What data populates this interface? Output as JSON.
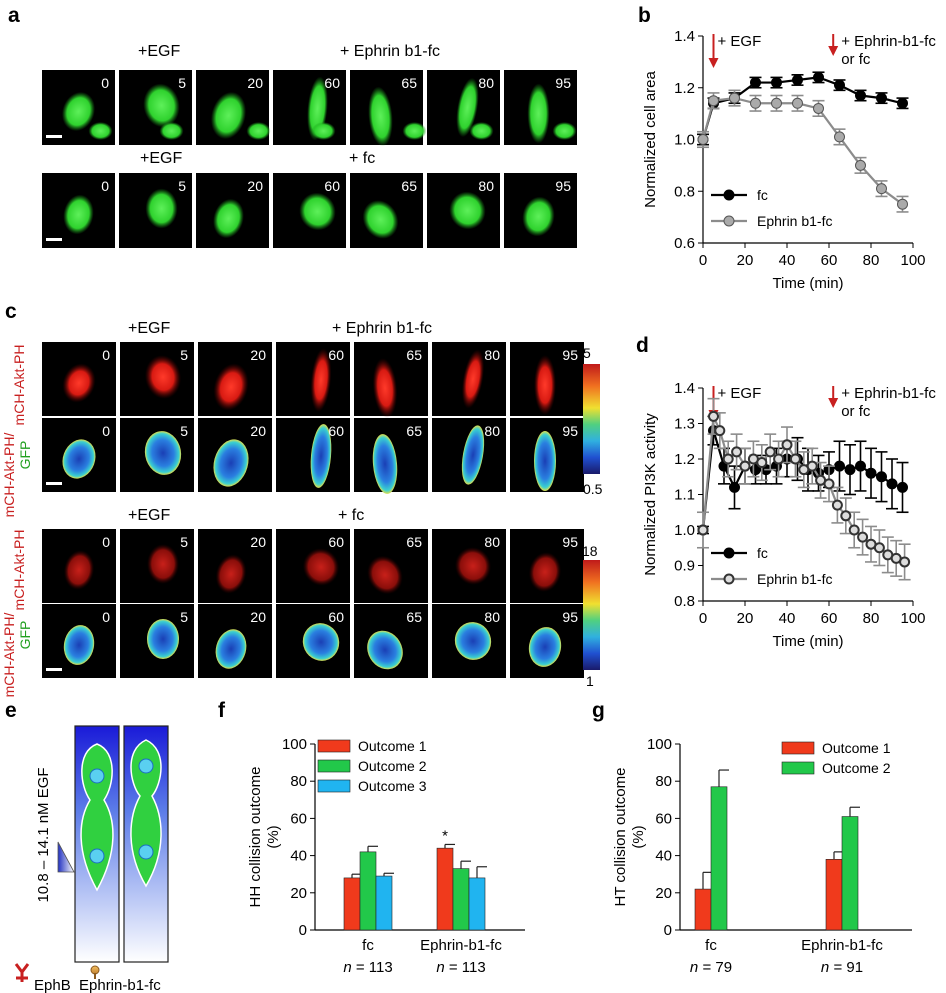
{
  "panels": {
    "a": "a",
    "b": "b",
    "c": "c",
    "d": "d",
    "e": "e",
    "f": "f",
    "g": "g"
  },
  "panel_a": {
    "row1_left": "+EGF",
    "row1_right": "+ Ephrin b1-fc",
    "row2_left": "+EGF",
    "row2_right": "+ fc",
    "times": [
      "0",
      "5",
      "20",
      "60",
      "65",
      "80",
      "95"
    ],
    "image_color": "#22c52b"
  },
  "panel_c": {
    "row1_left": "+EGF",
    "row1_right": "+ Ephrin b1-fc",
    "row2_left": "+EGF",
    "row2_right": "+ fc",
    "times": [
      "0",
      "5",
      "20",
      "60",
      "65",
      "80",
      "95"
    ],
    "side_red": "mCH-Akt-PH",
    "side_ratio_top": "mCH-Akt-PH/",
    "side_ratio_bottom": "GFP",
    "scale1_max": "5",
    "scale1_min": "0.5",
    "scale2_max": "18",
    "scale2_min": "1"
  },
  "panel_e": {
    "gradient_label": "10.8 – 14.1 nM EGF",
    "ephb": "EphB",
    "ephrin": "Ephrin-b1-fc"
  },
  "chart_data": [
    {
      "id": "b",
      "type": "line",
      "xlabel": "Time (min)",
      "ylabel": "Normalized cell area",
      "xlim": [
        0,
        100
      ],
      "ylim": [
        0.6,
        1.4
      ],
      "xticks": [
        "0",
        "20",
        "40",
        "60",
        "80",
        "100"
      ],
      "yticks": [
        "0.6",
        "0.8",
        "1.0",
        "1.2",
        "1.4"
      ],
      "annotations": [
        "+ EGF",
        "+ Ephrin-b1-fc",
        "or fc"
      ],
      "series": [
        {
          "name": "fc",
          "x": [
            0,
            5,
            15,
            25,
            35,
            45,
            55,
            65,
            75,
            85,
            95
          ],
          "values": [
            1.0,
            1.14,
            1.16,
            1.22,
            1.22,
            1.23,
            1.24,
            1.21,
            1.17,
            1.16,
            1.14
          ],
          "err": 0.02
        },
        {
          "name": "Ephrin b1-fc",
          "x": [
            0,
            5,
            15,
            25,
            35,
            45,
            55,
            65,
            75,
            85,
            95
          ],
          "values": [
            1.0,
            1.15,
            1.16,
            1.14,
            1.14,
            1.14,
            1.12,
            1.01,
            0.9,
            0.81,
            0.75
          ],
          "err": 0.03
        }
      ]
    },
    {
      "id": "d",
      "type": "line",
      "xlabel": "Time (min)",
      "ylabel": "Normalized PI3K activity",
      "xlim": [
        0,
        100
      ],
      "ylim": [
        0.8,
        1.4
      ],
      "xticks": [
        "0",
        "20",
        "40",
        "60",
        "80",
        "100"
      ],
      "yticks": [
        "0.8",
        "0.9",
        "1.0",
        "1.1",
        "1.2",
        "1.3",
        "1.4"
      ],
      "annotations": [
        "+ EGF",
        "+ Ephrin-b1-fc",
        "or fc"
      ],
      "series": [
        {
          "name": "fc",
          "x": [
            0,
            5,
            10,
            15,
            20,
            25,
            30,
            35,
            40,
            45,
            50,
            55,
            60,
            65,
            70,
            75,
            80,
            85,
            90,
            95
          ],
          "values": [
            1.0,
            1.28,
            1.18,
            1.12,
            1.18,
            1.17,
            1.17,
            1.18,
            1.2,
            1.2,
            1.17,
            1.16,
            1.17,
            1.18,
            1.17,
            1.18,
            1.16,
            1.15,
            1.13,
            1.12
          ],
          "err": [
            0.01,
            0.04,
            0.05,
            0.06,
            0.05,
            0.04,
            0.04,
            0.05,
            0.05,
            0.06,
            0.06,
            0.05,
            0.05,
            0.07,
            0.07,
            0.07,
            0.07,
            0.07,
            0.07,
            0.07
          ]
        },
        {
          "name": "Ephrin b1-fc",
          "x": [
            0,
            5,
            8,
            12,
            16,
            20,
            24,
            28,
            32,
            36,
            40,
            44,
            48,
            52,
            56,
            60,
            64,
            68,
            72,
            76,
            80,
            84,
            88,
            92,
            96
          ],
          "values": [
            1.0,
            1.32,
            1.28,
            1.2,
            1.22,
            1.18,
            1.2,
            1.19,
            1.22,
            1.2,
            1.24,
            1.2,
            1.17,
            1.18,
            1.14,
            1.13,
            1.07,
            1.04,
            1.0,
            0.98,
            0.96,
            0.95,
            0.93,
            0.92,
            0.91
          ],
          "err": 0.05
        }
      ]
    },
    {
      "id": "f",
      "type": "bar",
      "ylabel": "HH collision outcome",
      "ylabel2": "(%)",
      "ylim": [
        0,
        100
      ],
      "yticks": [
        "0",
        "20",
        "40",
        "60",
        "80",
        "100"
      ],
      "categories": [
        "fc",
        "Ephrin-b1-fc"
      ],
      "n_prefix": "n",
      "n_values": [
        "= 113",
        "= 113"
      ],
      "series": [
        {
          "name": "Outcome 1",
          "color": "#f03a1c",
          "values": [
            28,
            44
          ],
          "err": [
            2,
            2
          ]
        },
        {
          "name": "Outcome 2",
          "color": "#22c84a",
          "values": [
            42,
            33
          ],
          "err": [
            3,
            4
          ]
        },
        {
          "name": "Outcome 3",
          "color": "#20b4f0",
          "values": [
            29,
            28
          ],
          "err": [
            1.5,
            6
          ]
        }
      ],
      "marker": "*"
    },
    {
      "id": "g",
      "type": "bar",
      "ylabel": "HT collision outcome",
      "ylabel2": "(%)",
      "ylim": [
        0,
        100
      ],
      "yticks": [
        "0",
        "20",
        "40",
        "60",
        "80",
        "100"
      ],
      "categories": [
        "fc",
        "Ephrin-b1-fc"
      ],
      "n_prefix": "n",
      "n_values": [
        "= 79",
        "= 91"
      ],
      "series": [
        {
          "name": "Outcome 1",
          "color": "#f03a1c",
          "values": [
            22,
            38
          ],
          "err": [
            9,
            4
          ]
        },
        {
          "name": "Outcome 2",
          "color": "#22c84a",
          "values": [
            77,
            61
          ],
          "err": [
            9,
            5
          ]
        }
      ]
    }
  ]
}
